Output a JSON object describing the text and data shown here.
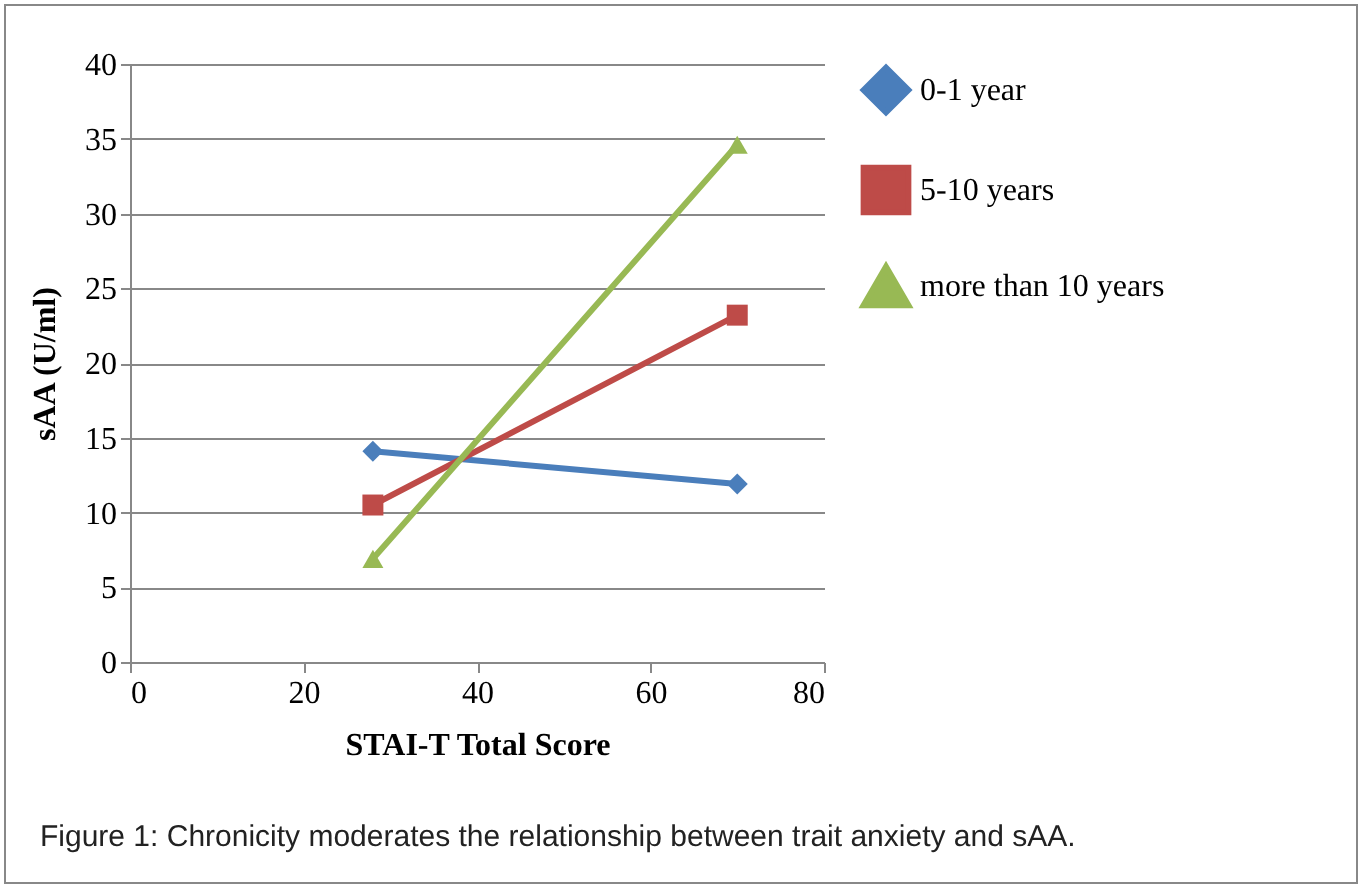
{
  "chart_data": {
    "type": "line",
    "xlabel": "STAI-T Total Score",
    "ylabel": "sAA (U/ml)",
    "x": [
      28,
      70
    ],
    "series": [
      {
        "name": "0-1 year",
        "color": "#4a7ebb",
        "marker": "diamond",
        "values": [
          14.1,
          11.9
        ]
      },
      {
        "name": "5-10 years",
        "color": "#be4b48",
        "marker": "square",
        "values": [
          10.5,
          23.2
        ]
      },
      {
        "name": "more than 10 years",
        "color": "#98b954",
        "marker": "triangle",
        "values": [
          6.9,
          34.6
        ]
      }
    ],
    "xlim": [
      0,
      80
    ],
    "xticks": [
      0,
      20,
      40,
      60,
      80
    ],
    "ylim": [
      0,
      40
    ],
    "yticks": [
      0,
      5,
      10,
      15,
      20,
      25,
      30,
      35,
      40
    ],
    "grid": "y",
    "legend": "right",
    "annotations": [
      "Figure 1: Chronicity moderates the relationship between trait anxiety and sAA."
    ]
  }
}
